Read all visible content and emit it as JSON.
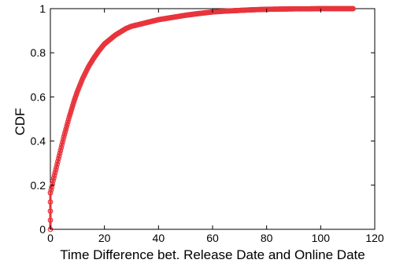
{
  "chart_data": {
    "type": "line",
    "title": "",
    "xlabel": "Time Difference bet. Release Date and Online Date",
    "ylabel": "CDF",
    "xlim": [
      0,
      120
    ],
    "ylim": [
      0,
      1
    ],
    "xticks": [
      0,
      20,
      40,
      60,
      80,
      100,
      120
    ],
    "yticks": [
      0,
      0.2,
      0.4,
      0.6,
      0.8,
      1
    ],
    "ytick_labels": [
      "0",
      "0.2",
      "0.4",
      "0.6",
      "0.8",
      "1"
    ],
    "grid": false,
    "legend": "none",
    "marker": "circle",
    "series": [
      {
        "color": "#e8343c",
        "x": [
          0,
          0,
          0.5,
          1,
          2,
          3,
          4,
          5,
          6,
          7,
          8,
          9,
          10,
          12,
          14,
          16,
          18,
          20,
          22,
          24,
          26,
          28,
          30,
          35,
          40,
          45,
          50,
          55,
          60,
          65,
          70,
          75,
          80,
          85,
          90,
          95,
          100,
          105,
          110,
          112
        ],
        "y": [
          0,
          0.165,
          0.19,
          0.22,
          0.27,
          0.32,
          0.37,
          0.42,
          0.465,
          0.51,
          0.55,
          0.59,
          0.625,
          0.685,
          0.735,
          0.775,
          0.81,
          0.84,
          0.86,
          0.88,
          0.895,
          0.91,
          0.92,
          0.935,
          0.95,
          0.96,
          0.97,
          0.978,
          0.985,
          0.989,
          0.992,
          0.995,
          0.997,
          0.998,
          0.999,
          0.999,
          1.0,
          1.0,
          1.0,
          1.0
        ]
      }
    ]
  }
}
